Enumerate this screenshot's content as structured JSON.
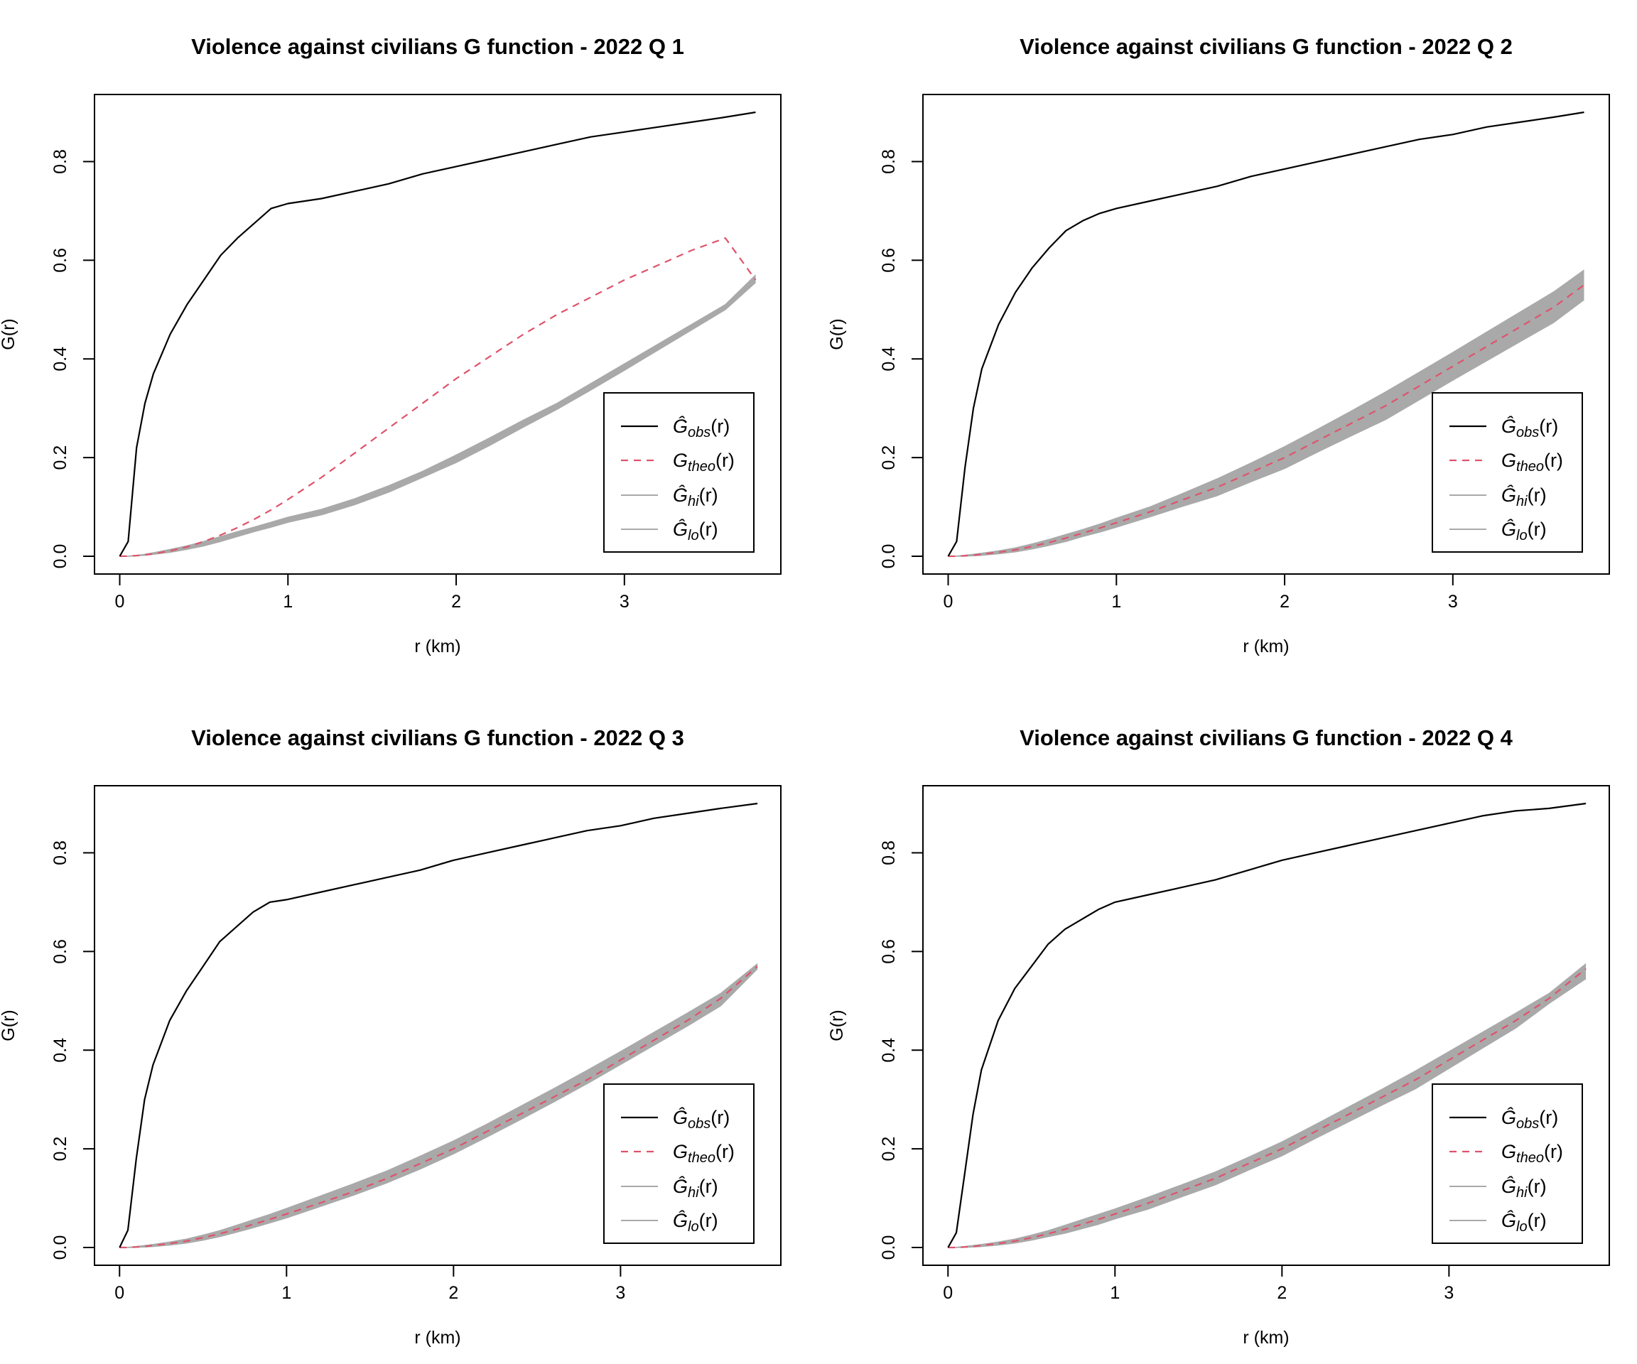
{
  "colors": {
    "obs": "#000000",
    "theo": "#DF536B",
    "envelope": "#A9A9A9",
    "frame": "#000000",
    "background": "#FFFFFF"
  },
  "shared": {
    "xlabel": "r (km)",
    "ylabel": "G(r)",
    "legend_placement": "bottom-right",
    "legend": [
      {
        "key": "obs",
        "text": "Ĝobs(r)",
        "base": "Ĝ",
        "sub": "obs",
        "tail": "(r)",
        "style": "solid",
        "color": "#000000"
      },
      {
        "key": "theo",
        "text": "Gtheo(r)",
        "base": "G",
        "sub": "theo",
        "tail": "(r)",
        "style": "dashed",
        "color": "#DF536B"
      },
      {
        "key": "hi",
        "text": "Ĝhi(r)",
        "base": "Ĝ",
        "sub": "hi",
        "tail": "(r)",
        "style": "solid",
        "color": "#A9A9A9"
      },
      {
        "key": "lo",
        "text": "Ĝlo(r)",
        "base": "Ĝ",
        "sub": "lo",
        "tail": "(r)",
        "style": "solid",
        "color": "#A9A9A9"
      }
    ]
  },
  "chart_data": [
    {
      "type": "line",
      "title": "Violence against civilians G function -  2022  Q 1",
      "xlabel": "r (km)",
      "ylabel": "G(r)",
      "xlim": [
        -0.15,
        3.93
      ],
      "ylim": [
        -0.036,
        0.936
      ],
      "xticks": [
        0,
        1,
        2,
        3
      ],
      "yticks": [
        0.0,
        0.2,
        0.4,
        0.6,
        0.8
      ],
      "grid": false,
      "legend": "bottom-right",
      "x": [
        0.0,
        0.05,
        0.1,
        0.15,
        0.2,
        0.3,
        0.4,
        0.5,
        0.6,
        0.7,
        0.8,
        0.9,
        1.0,
        1.2,
        1.4,
        1.6,
        1.8,
        2.0,
        2.2,
        2.4,
        2.6,
        2.8,
        3.0,
        3.2,
        3.4,
        3.6,
        3.78
      ],
      "series": [
        {
          "name": "Ĝobs(r)",
          "values": [
            0.0,
            0.03,
            0.22,
            0.31,
            0.37,
            0.45,
            0.51,
            0.56,
            0.61,
            0.645,
            0.675,
            0.705,
            0.715,
            0.725,
            0.74,
            0.755,
            0.775,
            0.79,
            0.805,
            0.82,
            0.835,
            0.85,
            0.86,
            0.87,
            0.88,
            0.89,
            0.9
          ]
        },
        {
          "name": "Gtheo(r)",
          "values": [
            0.0,
            0.0003,
            0.0013,
            0.003,
            0.005,
            0.011,
            0.019,
            0.03,
            0.043,
            0.058,
            0.075,
            0.094,
            0.115,
            0.16,
            0.21,
            0.26,
            0.31,
            0.36,
            0.405,
            0.45,
            0.49,
            0.525,
            0.56,
            0.59,
            0.62,
            0.645,
            0.56
          ]
        },
        {
          "name": "Ĝhi(r)",
          "values": [
            0.0,
            0.0005,
            0.0018,
            0.004,
            0.007,
            0.014,
            0.021,
            0.03,
            0.04,
            0.05,
            0.059,
            0.069,
            0.079,
            0.095,
            0.117,
            0.143,
            0.172,
            0.205,
            0.24,
            0.276,
            0.31,
            0.35,
            0.39,
            0.43,
            0.47,
            0.51,
            0.57
          ]
        },
        {
          "name": "Ĝlo(r)",
          "values": [
            0.0,
            0.0,
            0.0008,
            0.002,
            0.004,
            0.008,
            0.014,
            0.021,
            0.03,
            0.04,
            0.05,
            0.059,
            0.069,
            0.084,
            0.105,
            0.13,
            0.16,
            0.19,
            0.225,
            0.262,
            0.298,
            0.337,
            0.377,
            0.418,
            0.459,
            0.5,
            0.555
          ]
        }
      ]
    },
    {
      "type": "line",
      "title": "Violence against civilians G function -  2022  Q 2",
      "xlabel": "r (km)",
      "ylabel": "G(r)",
      "xlim": [
        -0.15,
        3.93
      ],
      "ylim": [
        -0.036,
        0.936
      ],
      "xticks": [
        0,
        1,
        2,
        3
      ],
      "yticks": [
        0.0,
        0.2,
        0.4,
        0.6,
        0.8
      ],
      "grid": false,
      "legend": "bottom-right",
      "x": [
        0.0,
        0.05,
        0.1,
        0.15,
        0.2,
        0.3,
        0.4,
        0.5,
        0.6,
        0.7,
        0.8,
        0.9,
        1.0,
        1.2,
        1.4,
        1.6,
        1.8,
        2.0,
        2.2,
        2.4,
        2.6,
        2.8,
        3.0,
        3.2,
        3.4,
        3.6,
        3.78
      ],
      "series": [
        {
          "name": "Ĝobs(r)",
          "values": [
            0.0,
            0.03,
            0.18,
            0.3,
            0.38,
            0.47,
            0.535,
            0.585,
            0.625,
            0.66,
            0.68,
            0.695,
            0.705,
            0.72,
            0.735,
            0.75,
            0.77,
            0.785,
            0.8,
            0.815,
            0.83,
            0.845,
            0.855,
            0.87,
            0.88,
            0.89,
            0.9
          ]
        },
        {
          "name": "Gtheo(r)",
          "values": [
            0.0,
            0.0,
            0.001,
            0.002,
            0.004,
            0.008,
            0.013,
            0.02,
            0.028,
            0.037,
            0.047,
            0.057,
            0.068,
            0.09,
            0.115,
            0.14,
            0.17,
            0.2,
            0.235,
            0.27,
            0.305,
            0.345,
            0.385,
            0.425,
            0.465,
            0.505,
            0.55
          ]
        },
        {
          "name": "Ĝhi(r)",
          "values": [
            0.0,
            0.0005,
            0.002,
            0.004,
            0.006,
            0.011,
            0.017,
            0.025,
            0.034,
            0.044,
            0.054,
            0.065,
            0.077,
            0.1,
            0.128,
            0.157,
            0.189,
            0.222,
            0.258,
            0.295,
            0.333,
            0.373,
            0.413,
            0.454,
            0.495,
            0.536,
            0.58
          ]
        },
        {
          "name": "Ĝlo(r)",
          "values": [
            0.0,
            0.0,
            0.0005,
            0.001,
            0.002,
            0.005,
            0.009,
            0.015,
            0.022,
            0.03,
            0.04,
            0.049,
            0.059,
            0.08,
            0.102,
            0.123,
            0.151,
            0.178,
            0.212,
            0.245,
            0.277,
            0.317,
            0.357,
            0.396,
            0.435,
            0.474,
            0.52
          ]
        }
      ]
    },
    {
      "type": "line",
      "title": "Violence against civilians G function -  2022  Q 3",
      "xlabel": "r (km)",
      "ylabel": "G(r)",
      "xlim": [
        -0.15,
        3.96
      ],
      "ylim": [
        -0.036,
        0.936
      ],
      "xticks": [
        0,
        1,
        2,
        3
      ],
      "yticks": [
        0.0,
        0.2,
        0.4,
        0.6,
        0.8
      ],
      "grid": false,
      "legend": "bottom-right",
      "x": [
        0.0,
        0.05,
        0.1,
        0.15,
        0.2,
        0.3,
        0.4,
        0.5,
        0.6,
        0.7,
        0.8,
        0.9,
        1.0,
        1.2,
        1.4,
        1.6,
        1.8,
        2.0,
        2.2,
        2.4,
        2.6,
        2.8,
        3.0,
        3.2,
        3.4,
        3.6,
        3.82
      ],
      "series": [
        {
          "name": "Ĝobs(r)",
          "values": [
            0.0,
            0.035,
            0.18,
            0.3,
            0.37,
            0.46,
            0.52,
            0.57,
            0.62,
            0.65,
            0.68,
            0.7,
            0.705,
            0.72,
            0.735,
            0.75,
            0.765,
            0.785,
            0.8,
            0.815,
            0.83,
            0.845,
            0.855,
            0.87,
            0.88,
            0.89,
            0.9
          ]
        },
        {
          "name": "Gtheo(r)",
          "values": [
            0.0,
            0.0,
            0.001,
            0.002,
            0.004,
            0.008,
            0.013,
            0.02,
            0.028,
            0.037,
            0.047,
            0.057,
            0.068,
            0.09,
            0.113,
            0.14,
            0.17,
            0.2,
            0.235,
            0.27,
            0.305,
            0.34,
            0.38,
            0.42,
            0.46,
            0.505,
            0.57
          ]
        },
        {
          "name": "Ĝhi(r)",
          "values": [
            0.0,
            0.0005,
            0.002,
            0.004,
            0.006,
            0.011,
            0.017,
            0.025,
            0.034,
            0.045,
            0.056,
            0.067,
            0.079,
            0.104,
            0.129,
            0.155,
            0.185,
            0.216,
            0.25,
            0.286,
            0.322,
            0.359,
            0.397,
            0.436,
            0.475,
            0.515,
            0.575
          ]
        },
        {
          "name": "Ĝlo(r)",
          "values": [
            0.0,
            0.0,
            0.0005,
            0.001,
            0.002,
            0.005,
            0.009,
            0.015,
            0.022,
            0.031,
            0.04,
            0.05,
            0.06,
            0.083,
            0.106,
            0.131,
            0.159,
            0.19,
            0.224,
            0.259,
            0.295,
            0.332,
            0.371,
            0.41,
            0.449,
            0.49,
            0.565
          ]
        }
      ]
    },
    {
      "type": "line",
      "title": "Violence against civilians G function -  2022  Q 4",
      "xlabel": "r (km)",
      "ylabel": "G(r)",
      "xlim": [
        -0.15,
        3.96
      ],
      "ylim": [
        -0.036,
        0.936
      ],
      "xticks": [
        0,
        1,
        2,
        3
      ],
      "yticks": [
        0.0,
        0.2,
        0.4,
        0.6,
        0.8
      ],
      "grid": false,
      "legend": "bottom-right",
      "x": [
        0.0,
        0.05,
        0.1,
        0.15,
        0.2,
        0.3,
        0.4,
        0.5,
        0.6,
        0.7,
        0.8,
        0.9,
        1.0,
        1.2,
        1.4,
        1.6,
        1.8,
        2.0,
        2.2,
        2.4,
        2.6,
        2.8,
        3.0,
        3.2,
        3.4,
        3.6,
        3.82
      ],
      "series": [
        {
          "name": "Ĝobs(r)",
          "values": [
            0.0,
            0.03,
            0.15,
            0.27,
            0.36,
            0.46,
            0.525,
            0.57,
            0.615,
            0.645,
            0.665,
            0.685,
            0.7,
            0.715,
            0.73,
            0.745,
            0.765,
            0.785,
            0.8,
            0.815,
            0.83,
            0.845,
            0.86,
            0.875,
            0.885,
            0.89,
            0.9
          ]
        },
        {
          "name": "Gtheo(r)",
          "values": [
            0.0,
            0.0,
            0.001,
            0.002,
            0.004,
            0.008,
            0.013,
            0.02,
            0.028,
            0.037,
            0.047,
            0.057,
            0.068,
            0.09,
            0.115,
            0.14,
            0.17,
            0.2,
            0.235,
            0.27,
            0.305,
            0.34,
            0.38,
            0.42,
            0.46,
            0.505,
            0.565
          ]
        },
        {
          "name": "Ĝhi(r)",
          "values": [
            0.0,
            0.0005,
            0.002,
            0.004,
            0.006,
            0.011,
            0.017,
            0.025,
            0.034,
            0.045,
            0.056,
            0.067,
            0.078,
            0.102,
            0.127,
            0.153,
            0.183,
            0.214,
            0.249,
            0.285,
            0.321,
            0.358,
            0.397,
            0.436,
            0.475,
            0.515,
            0.575
          ]
        },
        {
          "name": "Ĝlo(r)",
          "values": [
            0.0,
            0.0,
            0.0005,
            0.001,
            0.002,
            0.005,
            0.009,
            0.015,
            0.022,
            0.029,
            0.038,
            0.047,
            0.058,
            0.078,
            0.103,
            0.127,
            0.157,
            0.186,
            0.221,
            0.255,
            0.289,
            0.322,
            0.363,
            0.404,
            0.445,
            0.495,
            0.545
          ]
        }
      ]
    }
  ]
}
